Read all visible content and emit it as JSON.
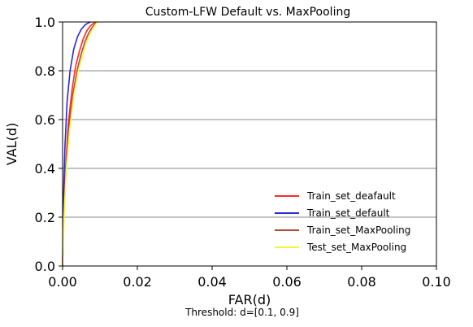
{
  "chart_data": {
    "type": "line",
    "title": "Custom-LFW Default vs. MaxPooling",
    "xlabel": "FAR(d)",
    "ylabel": "VAL(d)",
    "annotation": "Threshold: d=[0.1, 0.9]",
    "xlim": [
      0.0,
      0.1
    ],
    "ylim": [
      0.0,
      1.0
    ],
    "xticks": [
      "0.00",
      "0.02",
      "0.04",
      "0.06",
      "0.08",
      "0.10"
    ],
    "yticks": [
      "0.0",
      "0.2",
      "0.4",
      "0.6",
      "0.8",
      "1.0"
    ],
    "grid": "horizontal",
    "legend_position": "lower-right",
    "series": [
      {
        "name": "Train_set_deafault",
        "color": "#ff2a2a",
        "x": [
          0.0,
          0.0003,
          0.0008,
          0.0015,
          0.0025,
          0.0035,
          0.0045,
          0.0055,
          0.0065,
          0.0075,
          0.0085,
          0.009
        ],
        "y": [
          0.0,
          0.2,
          0.4,
          0.58,
          0.72,
          0.82,
          0.88,
          0.93,
          0.965,
          0.985,
          0.997,
          1.0
        ]
      },
      {
        "name": "Train_set_default",
        "color": "#2a2ad4",
        "x": [
          0.0,
          0.0002,
          0.0006,
          0.0012,
          0.002,
          0.003,
          0.004,
          0.005,
          0.006,
          0.007,
          0.0075
        ],
        "y": [
          0.0,
          0.25,
          0.48,
          0.67,
          0.8,
          0.89,
          0.94,
          0.97,
          0.988,
          0.997,
          1.0
        ]
      },
      {
        "name": "Train_set_MaxPooling",
        "color": "#b04a3a",
        "x": [
          0.0,
          0.0003,
          0.0009,
          0.0017,
          0.0028,
          0.004,
          0.005,
          0.006,
          0.007,
          0.008,
          0.0088,
          0.0092
        ],
        "y": [
          0.0,
          0.2,
          0.4,
          0.57,
          0.71,
          0.81,
          0.87,
          0.92,
          0.955,
          0.98,
          0.995,
          1.0
        ]
      },
      {
        "name": "Test_set_MaxPooling",
        "color": "#f5f53a",
        "x": [
          0.0,
          0.0004,
          0.001,
          0.0019,
          0.003,
          0.0042,
          0.0053,
          0.0063,
          0.0073,
          0.0083,
          0.009,
          0.0095
        ],
        "y": [
          0.0,
          0.2,
          0.4,
          0.56,
          0.7,
          0.8,
          0.86,
          0.915,
          0.95,
          0.978,
          0.994,
          1.0
        ]
      }
    ]
  }
}
